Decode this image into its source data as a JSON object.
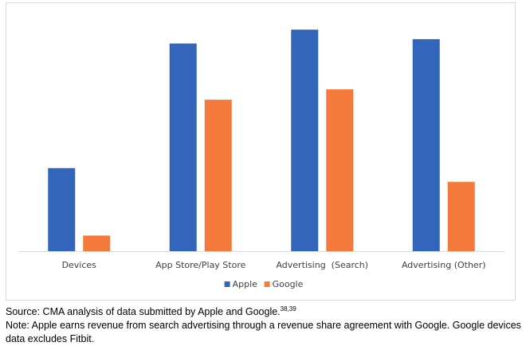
{
  "chart_data": {
    "type": "bar",
    "categories": [
      "Devices",
      "App Store/Play Store",
      "Advertising  (Search)",
      "Advertising (Other)"
    ],
    "series": [
      {
        "name": "Apple",
        "color": "#3366bb",
        "values": [
          96,
          240,
          256,
          245
        ]
      },
      {
        "name": "Google",
        "color": "#f47a3c",
        "values": [
          18,
          175,
          187,
          80
        ]
      }
    ],
    "ylim": [
      0,
      270
    ],
    "grid": false,
    "y_axis_labels_shown": false,
    "legend_position": "bottom-center"
  },
  "caption": {
    "source": "Source: CMA analysis of data submitted by Apple and Google.",
    "source_refs": "38,39",
    "note": "Note: Apple earns revenue from search advertising through a revenue share agreement with Google. Google devices data excludes Fitbit."
  }
}
